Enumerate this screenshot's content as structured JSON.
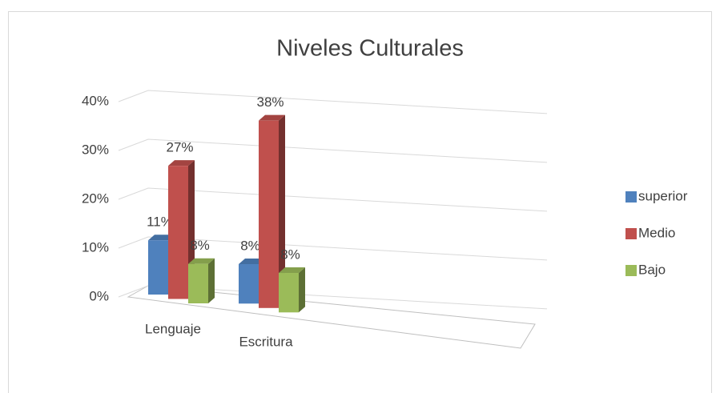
{
  "chart_data": {
    "type": "bar3d",
    "title": "Niveles Culturales",
    "categories": [
      "Lenguaje",
      "Escritura"
    ],
    "series": [
      {
        "name": "superior",
        "color": "#4f81bd",
        "values": [
          11,
          8
        ],
        "value_labels": [
          "11%",
          "8%"
        ]
      },
      {
        "name": "Medio",
        "color": "#c0504d",
        "values": [
          27,
          38
        ],
        "value_labels": [
          "27%",
          "38%"
        ]
      },
      {
        "name": "Bajo",
        "color": "#9bbb59",
        "values": [
          8,
          8
        ],
        "value_labels": [
          "8%",
          "8%"
        ]
      }
    ],
    "ylim": [
      0,
      40
    ],
    "yticks": [
      {
        "value": 0,
        "label": "0%"
      },
      {
        "value": 10,
        "label": "10%"
      },
      {
        "value": 20,
        "label": "20%"
      },
      {
        "value": 30,
        "label": "30%"
      },
      {
        "value": 40,
        "label": "40%"
      }
    ],
    "grid": true,
    "legend": "right"
  }
}
